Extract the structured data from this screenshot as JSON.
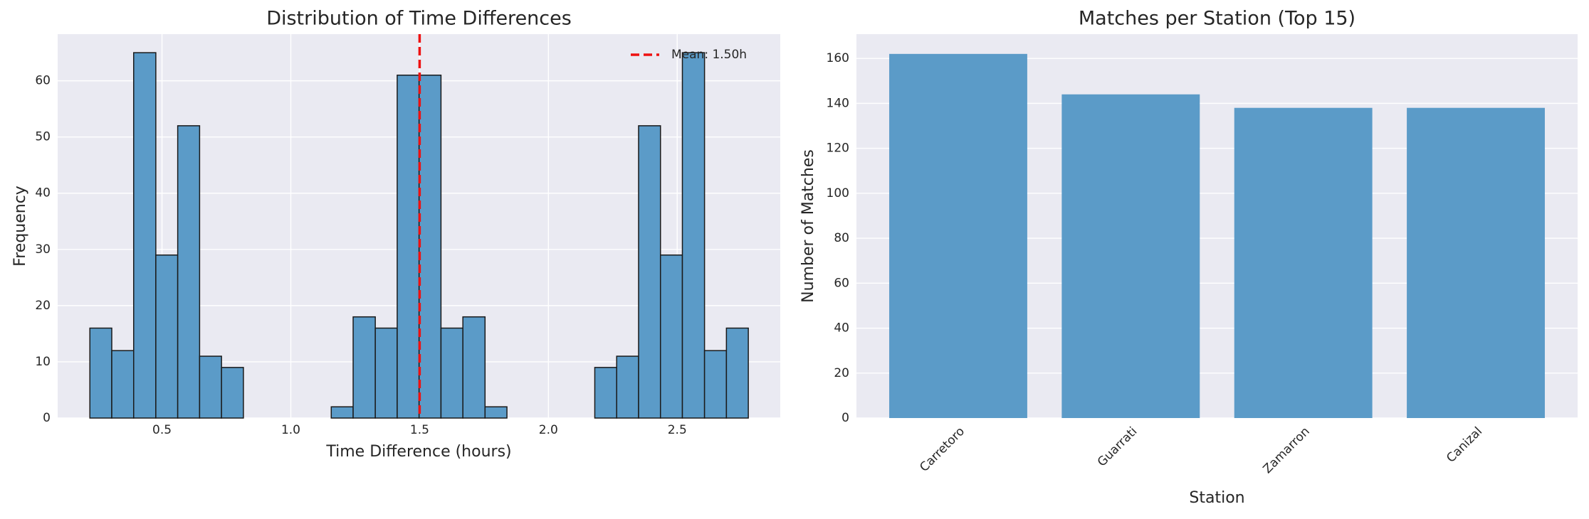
{
  "chart_data": [
    {
      "type": "histogram",
      "title": "Distribution of Time Differences",
      "xlabel": "Time Difference (hours)",
      "ylabel": "Frequency",
      "bins": [
        0.22,
        0.305,
        0.39,
        0.476,
        0.561,
        0.646,
        0.731,
        0.816,
        0.902,
        0.987,
        1.072,
        1.157,
        1.242,
        1.328,
        1.413,
        1.498,
        1.583,
        1.668,
        1.754,
        1.839,
        1.924,
        2.009,
        2.094,
        2.18,
        2.265,
        2.35,
        2.435,
        2.52,
        2.606,
        2.691,
        2.776
      ],
      "values": [
        16,
        12,
        65,
        29,
        52,
        11,
        9,
        0,
        0,
        0,
        0,
        2,
        18,
        16,
        61,
        61,
        16,
        18,
        2,
        0,
        0,
        0,
        0,
        9,
        11,
        52,
        29,
        65,
        12,
        16
      ],
      "color": "#5b9bc8",
      "edgecolor": "#1a1a1a",
      "xlim": [
        0.095,
        2.9
      ],
      "ylim": [
        0,
        68.3
      ],
      "xticks": [
        0.5,
        {
          "value": 1,
          "label": "1.0"
        },
        1.5,
        {
          "value": 2,
          "label": "2.0"
        },
        2.5
      ],
      "yticks": [
        0,
        10,
        20,
        30,
        40,
        50,
        60
      ],
      "grid": true,
      "mean_line": {
        "value": 1.5,
        "label": "Mean: 1.50h",
        "color": "#ee1111"
      },
      "legend": "upper right"
    },
    {
      "type": "bar",
      "title": "Matches per Station (Top 15)",
      "xlabel": "Station",
      "ylabel": "Number of Matches",
      "categories": [
        "Carretoro",
        "Guarrati",
        "Zamarron",
        "Canizal"
      ],
      "values": [
        162,
        144,
        138,
        138
      ],
      "color": "#5b9bc8",
      "ylim": [
        0,
        170.8
      ],
      "yticks": [
        0,
        20,
        40,
        60,
        80,
        100,
        120,
        140,
        160
      ],
      "grid": true
    }
  ]
}
